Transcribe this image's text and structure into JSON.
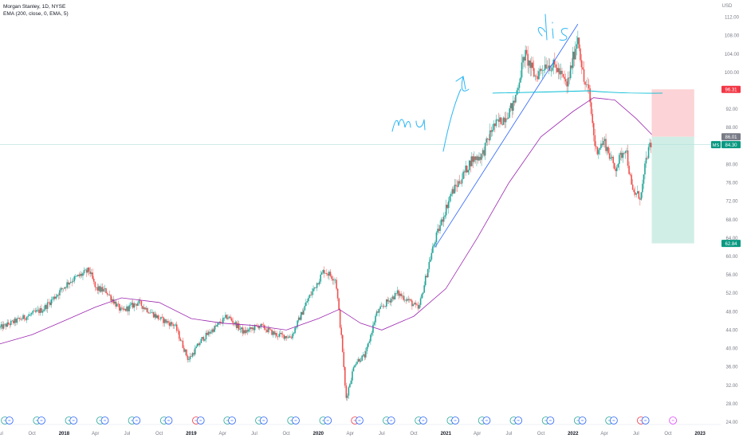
{
  "header": {
    "symbol_line": "Morgan Stanley, 1D, NYSE",
    "indicator_line": "EMA (200, close, 0, EMA, 5)"
  },
  "chart_data": {
    "type": "candlestick",
    "title": "Morgan Stanley, 1D, NYSE",
    "indicator": "EMA (200, close, 0, EMA, 5)",
    "y_axis": {
      "unit": "USD",
      "range": [
        24,
        114
      ],
      "ticks": [
        "112.00",
        "108.00",
        "104.00",
        "100.00",
        "96.00",
        "92.00",
        "88.00",
        "84.00",
        "80.00",
        "76.00",
        "72.00",
        "68.00",
        "64.00",
        "60.00",
        "56.00",
        "52.00",
        "48.00",
        "44.00",
        "40.00",
        "36.00",
        "32.00",
        "28.00",
        "24.00"
      ]
    },
    "x_axis": {
      "range": [
        "2017-07-01",
        "2023-03-01"
      ],
      "ticks": [
        {
          "label": "Jul",
          "date": "2017-07-01"
        },
        {
          "label": "Oct",
          "date": "2017-10-01"
        },
        {
          "label": "2018",
          "date": "2018-01-01"
        },
        {
          "label": "Apr",
          "date": "2018-04-01"
        },
        {
          "label": "Jul",
          "date": "2018-07-01"
        },
        {
          "label": "Oct",
          "date": "2018-10-01"
        },
        {
          "label": "2019",
          "date": "2019-01-01"
        },
        {
          "label": "Apr",
          "date": "2019-04-01"
        },
        {
          "label": "Jul",
          "date": "2019-07-01"
        },
        {
          "label": "Oct",
          "date": "2019-10-01"
        },
        {
          "label": "2020",
          "date": "2020-01-01"
        },
        {
          "label": "Apr",
          "date": "2020-04-01"
        },
        {
          "label": "Jul",
          "date": "2020-07-01"
        },
        {
          "label": "Oct",
          "date": "2020-10-01"
        },
        {
          "label": "2021",
          "date": "2021-01-01"
        },
        {
          "label": "Apr",
          "date": "2021-04-01"
        },
        {
          "label": "Jul",
          "date": "2021-07-01"
        },
        {
          "label": "Oct",
          "date": "2021-10-01"
        },
        {
          "label": "2022",
          "date": "2022-01-01"
        },
        {
          "label": "Apr",
          "date": "2022-04-01"
        },
        {
          "label": "Jul",
          "date": "2022-07-01"
        },
        {
          "label": "Oct",
          "date": "2022-10-01"
        },
        {
          "label": "2023",
          "date": "2023-01-01"
        }
      ]
    },
    "price_path": [
      [
        "2017-07-01",
        44.5
      ],
      [
        "2017-09-01",
        46.5
      ],
      [
        "2017-11-01",
        48.5
      ],
      [
        "2018-01-15",
        54.5
      ],
      [
        "2018-03-15",
        57.0
      ],
      [
        "2018-04-01",
        53.0
      ],
      [
        "2018-05-01",
        52.5
      ],
      [
        "2018-06-15",
        48.0
      ],
      [
        "2018-08-01",
        50.0
      ],
      [
        "2018-10-01",
        46.5
      ],
      [
        "2018-11-15",
        45.0
      ],
      [
        "2018-12-24",
        37.5
      ],
      [
        "2019-02-01",
        42.0
      ],
      [
        "2019-04-15",
        47.0
      ],
      [
        "2019-06-01",
        43.5
      ],
      [
        "2019-07-15",
        45.0
      ],
      [
        "2019-09-01",
        43.0
      ],
      [
        "2019-10-15",
        42.5
      ],
      [
        "2019-12-01",
        50.5
      ],
      [
        "2020-01-17",
        57.0
      ],
      [
        "2020-02-20",
        55.0
      ],
      [
        "2020-03-10",
        40.0
      ],
      [
        "2020-03-20",
        29.0
      ],
      [
        "2020-04-15",
        37.0
      ],
      [
        "2020-05-15",
        38.5
      ],
      [
        "2020-06-15",
        47.5
      ],
      [
        "2020-07-15",
        50.0
      ],
      [
        "2020-08-15",
        52.0
      ],
      [
        "2020-09-15",
        50.5
      ],
      [
        "2020-10-15",
        48.5
      ],
      [
        "2020-11-15",
        59.0
      ],
      [
        "2020-12-01",
        63.5
      ],
      [
        "2021-01-15",
        73.5
      ],
      [
        "2021-02-15",
        77.0
      ],
      [
        "2021-03-15",
        81.0
      ],
      [
        "2021-04-15",
        82.0
      ],
      [
        "2021-05-15",
        88.0
      ],
      [
        "2021-06-15",
        90.0
      ],
      [
        "2021-07-15",
        93.0
      ],
      [
        "2021-08-15",
        104.0
      ],
      [
        "2021-09-15",
        99.0
      ],
      [
        "2021-10-15",
        102.0
      ],
      [
        "2021-11-15",
        101.0
      ],
      [
        "2021-12-15",
        97.0
      ],
      [
        "2022-01-15",
        108.0
      ],
      [
        "2022-02-01",
        98.0
      ],
      [
        "2022-02-15",
        96.0
      ],
      [
        "2022-03-07",
        83.0
      ],
      [
        "2022-04-01",
        85.0
      ],
      [
        "2022-05-01",
        79.0
      ],
      [
        "2022-06-01",
        84.0
      ],
      [
        "2022-06-20",
        74.0
      ],
      [
        "2022-07-15",
        73.0
      ],
      [
        "2022-08-01",
        82.0
      ],
      [
        "2022-08-15",
        84.5
      ]
    ],
    "ema_200": [
      [
        "2017-07-01",
        41.0
      ],
      [
        "2017-10-01",
        43.0
      ],
      [
        "2018-01-01",
        46.0
      ],
      [
        "2018-04-01",
        49.0
      ],
      [
        "2018-06-15",
        51.0
      ],
      [
        "2018-10-01",
        50.0
      ],
      [
        "2019-01-01",
        46.5
      ],
      [
        "2019-04-01",
        45.5
      ],
      [
        "2019-07-01",
        45.0
      ],
      [
        "2019-10-01",
        44.0
      ],
      [
        "2020-01-01",
        46.5
      ],
      [
        "2020-03-01",
        48.5
      ],
      [
        "2020-05-01",
        45.5
      ],
      [
        "2020-07-01",
        44.0
      ],
      [
        "2020-10-01",
        47.0
      ],
      [
        "2021-01-01",
        53.0
      ],
      [
        "2021-04-01",
        64.0
      ],
      [
        "2021-07-01",
        76.0
      ],
      [
        "2021-10-01",
        86.0
      ],
      [
        "2022-01-01",
        91.5
      ],
      [
        "2022-03-01",
        94.5
      ],
      [
        "2022-05-01",
        94.0
      ],
      [
        "2022-07-01",
        90.0
      ],
      [
        "2022-08-15",
        86.5
      ]
    ],
    "drawings": {
      "trendline": {
        "from": [
          "2020-12-01",
          62.0
        ],
        "to": [
          "2022-01-15",
          110.5
        ]
      },
      "horizontal_cyan": {
        "from": [
          "2021-05-15",
          95.5
        ],
        "to": [
          "2022-09-15",
          95.5
        ],
        "touch": [
          "2022-02-15",
          96.0
        ]
      },
      "position": {
        "start": "2022-08-15",
        "end": "2022-12-15",
        "entry": 86.01,
        "stop": 96.31,
        "target": 62.84
      }
    },
    "price_labels": [
      {
        "value": 96.31,
        "text": "96.31",
        "color": "#f23645"
      },
      {
        "value": 86.01,
        "text": "86.01",
        "color": "#787b86"
      },
      {
        "value": 84.3,
        "text": "84.30",
        "tag": "MS",
        "color": "#089981"
      },
      {
        "value": 62.84,
        "text": "62.84",
        "color": "#089981"
      }
    ],
    "current_price": 84.3,
    "event_markers": [
      {
        "date": "2017-07-15",
        "kind": "earnings"
      },
      {
        "date": "2017-07-28",
        "kind": "dividend"
      },
      {
        "date": "2017-10-15",
        "kind": "earnings"
      },
      {
        "date": "2017-10-28",
        "kind": "dividend"
      },
      {
        "date": "2018-01-15",
        "kind": "earnings"
      },
      {
        "date": "2018-01-28",
        "kind": "dividend"
      },
      {
        "date": "2018-04-15",
        "kind": "earnings"
      },
      {
        "date": "2018-04-28",
        "kind": "dividend"
      },
      {
        "date": "2018-07-15",
        "kind": "earnings"
      },
      {
        "date": "2018-07-28",
        "kind": "dividend"
      },
      {
        "date": "2018-10-15",
        "kind": "earnings"
      },
      {
        "date": "2018-10-28",
        "kind": "dividend"
      },
      {
        "date": "2019-01-15",
        "kind": "earnings-red"
      },
      {
        "date": "2019-01-28",
        "kind": "dividend"
      },
      {
        "date": "2019-04-15",
        "kind": "earnings"
      },
      {
        "date": "2019-04-28",
        "kind": "dividend"
      },
      {
        "date": "2019-07-15",
        "kind": "earnings"
      },
      {
        "date": "2019-07-28",
        "kind": "dividend"
      },
      {
        "date": "2019-10-15",
        "kind": "earnings"
      },
      {
        "date": "2019-10-28",
        "kind": "dividend"
      },
      {
        "date": "2020-01-15",
        "kind": "earnings"
      },
      {
        "date": "2020-01-28",
        "kind": "dividend"
      },
      {
        "date": "2020-04-15",
        "kind": "earnings-red"
      },
      {
        "date": "2020-04-28",
        "kind": "dividend"
      },
      {
        "date": "2020-07-15",
        "kind": "earnings"
      },
      {
        "date": "2020-07-28",
        "kind": "dividend"
      },
      {
        "date": "2020-10-15",
        "kind": "earnings"
      },
      {
        "date": "2020-10-28",
        "kind": "dividend"
      },
      {
        "date": "2021-01-15",
        "kind": "earnings"
      },
      {
        "date": "2021-01-28",
        "kind": "dividend"
      },
      {
        "date": "2021-04-15",
        "kind": "earnings"
      },
      {
        "date": "2021-04-28",
        "kind": "dividend"
      },
      {
        "date": "2021-07-15",
        "kind": "earnings"
      },
      {
        "date": "2021-07-28",
        "kind": "dividend"
      },
      {
        "date": "2021-10-15",
        "kind": "earnings"
      },
      {
        "date": "2021-10-28",
        "kind": "dividend"
      },
      {
        "date": "2022-01-15",
        "kind": "earnings"
      },
      {
        "date": "2022-01-28",
        "kind": "dividend"
      },
      {
        "date": "2022-04-15",
        "kind": "earnings"
      },
      {
        "date": "2022-04-28",
        "kind": "dividend"
      },
      {
        "date": "2022-07-15",
        "kind": "earnings-red"
      },
      {
        "date": "2022-07-28",
        "kind": "dividend"
      },
      {
        "date": "2022-10-15",
        "kind": "upcoming"
      }
    ],
    "annotations": [
      "mu",
      "dis"
    ],
    "colors": {
      "up": "#26a69a",
      "down": "#ef5350",
      "ema": "#9c27b0",
      "trendline": "#2962ff",
      "hline": "#00bcd4",
      "stop_zone": "#fcd3d6",
      "target_zone": "#d1eee6"
    }
  }
}
